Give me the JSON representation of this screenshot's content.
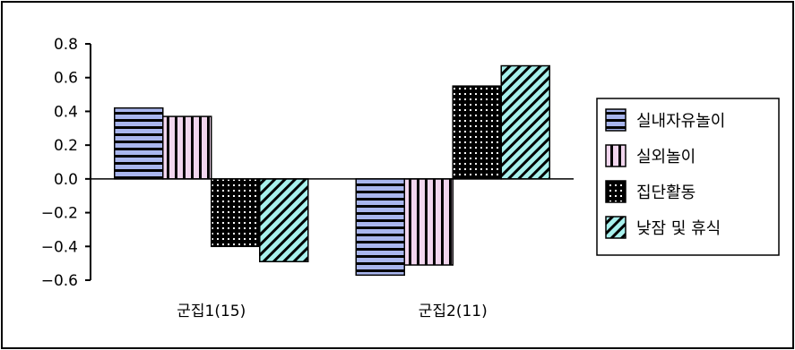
{
  "chart_data": {
    "type": "bar",
    "categories": [
      "군집1(15)",
      "군집2(11)"
    ],
    "series": [
      {
        "name": "실내자유놀이",
        "values": [
          0.42,
          -0.57
        ],
        "pattern": "horizontal-stripes",
        "color": "#a9b6ee"
      },
      {
        "name": "실외놀이",
        "values": [
          0.37,
          -0.51
        ],
        "pattern": "vertical-stripes",
        "color": "#f2d6ee"
      },
      {
        "name": "집단활동",
        "values": [
          -0.4,
          0.55
        ],
        "pattern": "dotted",
        "color": "#000000"
      },
      {
        "name": "낮잠 및 휴식",
        "values": [
          -0.49,
          0.67
        ],
        "pattern": "diagonal-stripes",
        "color": "#a8f0ec"
      }
    ],
    "yticks": [
      "0.8",
      "0.6",
      "0.4",
      "0.2",
      "0.0",
      "−0.2",
      "−0.4",
      "−0.6"
    ],
    "ylim": [
      -0.6,
      0.8
    ],
    "legend_position": "right",
    "grid": false
  }
}
